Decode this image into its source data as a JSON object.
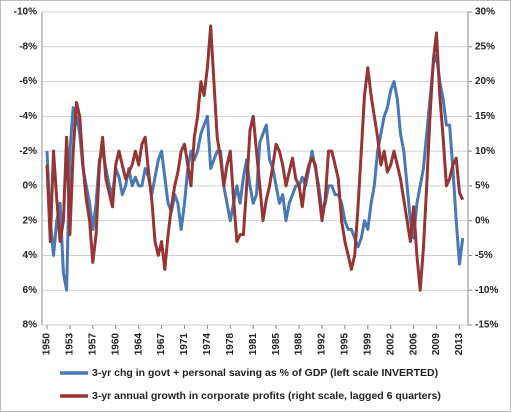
{
  "chart_data": {
    "type": "line",
    "x": [
      1950,
      1950.5,
      1951,
      1951.5,
      1952,
      1952.5,
      1953,
      1953.5,
      1954,
      1954.5,
      1955,
      1955.5,
      1956,
      1956.5,
      1957,
      1957.5,
      1958,
      1958.5,
      1959,
      1959.5,
      1960,
      1960.5,
      1961,
      1961.5,
      1962,
      1962.5,
      1963,
      1963.5,
      1964,
      1964.5,
      1965,
      1965.5,
      1966,
      1966.5,
      1967,
      1967.5,
      1968,
      1968.5,
      1969,
      1969.5,
      1970,
      1970.5,
      1971,
      1971.5,
      1972,
      1972.5,
      1973,
      1973.5,
      1974,
      1974.5,
      1975,
      1975.5,
      1976,
      1976.5,
      1977,
      1977.5,
      1978,
      1978.5,
      1979,
      1979.5,
      1980,
      1980.5,
      1981,
      1981.5,
      1982,
      1982.5,
      1983,
      1983.5,
      1984,
      1984.5,
      1985,
      1985.5,
      1986,
      1986.5,
      1987,
      1987.5,
      1988,
      1988.5,
      1989,
      1989.5,
      1990,
      1990.5,
      1991,
      1991.5,
      1992,
      1992.5,
      1993,
      1993.5,
      1994,
      1994.5,
      1995,
      1995.5,
      1996,
      1996.5,
      1997,
      1997.5,
      1998,
      1998.5,
      1999,
      1999.5,
      2000,
      2000.5,
      2001,
      2001.5,
      2002,
      2002.5,
      2003,
      2003.5,
      2004,
      2004.5,
      2005,
      2005.5,
      2006,
      2006.5,
      2007,
      2007.5,
      2008,
      2008.5,
      2009,
      2009.5,
      2010,
      2010.5,
      2011,
      2011.5,
      2012,
      2012.5,
      2013,
      2013.5
    ],
    "xlim": [
      1950,
      2014
    ],
    "xticks": [
      1950,
      {
        "value": 1953.5,
        "label": "1953"
      },
      1957,
      {
        "value": 1960.5,
        "label": "1960"
      },
      1964,
      {
        "value": 1967.5,
        "label": "1967"
      },
      1971,
      {
        "value": 1974.5,
        "label": "1974"
      },
      1978,
      {
        "value": 1981.5,
        "label": "1981"
      },
      1985,
      {
        "value": 1988.5,
        "label": "1988"
      },
      1992,
      {
        "value": 1995.5,
        "label": "1995"
      },
      1999,
      {
        "value": 2002.5,
        "label": "2002"
      },
      2006,
      {
        "value": 2009.5,
        "label": "2009"
      },
      2013
    ],
    "ylim": [
      -10,
      8
    ],
    "y_inverted": true,
    "yticks": [
      {
        "value": -10,
        "label": "-10%"
      },
      {
        "value": -8,
        "label": "-8%"
      },
      {
        "value": -6,
        "label": "-6%"
      },
      {
        "value": -4,
        "label": "-4%"
      },
      {
        "value": -2,
        "label": "-2%"
      },
      {
        "value": 0,
        "label": "0%"
      },
      {
        "value": 2,
        "label": "2%"
      },
      {
        "value": 4,
        "label": "4%"
      },
      {
        "value": 6,
        "label": "6%"
      },
      {
        "value": 8,
        "label": "8%"
      }
    ],
    "y2lim": [
      -15,
      30
    ],
    "y2ticks": [
      {
        "value": 30,
        "label": "30%"
      },
      {
        "value": 25,
        "label": "25%"
      },
      {
        "value": 20,
        "label": "20%"
      },
      {
        "value": 15,
        "label": "15%"
      },
      {
        "value": 10,
        "label": "10%"
      },
      {
        "value": 5,
        "label": "5%"
      },
      {
        "value": 0,
        "label": "0%"
      },
      {
        "value": -5,
        "label": "-5%"
      },
      {
        "value": -10,
        "label": "-10%"
      },
      {
        "value": -15,
        "label": "-15%"
      }
    ],
    "grid": true,
    "series": [
      {
        "name": "3-yr chg in govt + personal saving as % of GDP (left scale INVERTED)",
        "color": "#4a78b4",
        "values": [
          -2,
          2,
          4,
          2,
          1,
          5,
          6,
          -2,
          -4.5,
          -4,
          -3,
          -1,
          0,
          1,
          2.5,
          1,
          -1.5,
          -2,
          -1,
          0,
          0.5,
          -1,
          -0.5,
          0.5,
          0,
          -1,
          0,
          -0.5,
          0,
          0,
          -1,
          -0.5,
          0.5,
          -0.5,
          -1.5,
          -2,
          -0.5,
          1,
          1.5,
          0.5,
          1,
          2.5,
          1,
          -1,
          -2,
          -1.5,
          -2,
          -3,
          -3.5,
          -4,
          -1,
          -1.5,
          -2,
          -2,
          0,
          1,
          2,
          1,
          0,
          1,
          -0.5,
          -1.5,
          0,
          1,
          0.5,
          -2.5,
          -3,
          -3.5,
          -1.5,
          -1,
          0,
          1,
          0.5,
          2,
          1,
          0.5,
          0,
          0,
          -0.5,
          0,
          -1,
          -2,
          -1,
          0,
          1.5,
          1,
          0,
          0,
          0.5,
          0.5,
          1,
          2,
          2.5,
          2.5,
          3,
          3.5,
          3,
          2,
          2.5,
          1,
          0,
          -2,
          -3,
          -4,
          -4.5,
          -5.5,
          -6,
          -5,
          -3,
          -2,
          0,
          2,
          3,
          1,
          0,
          -1,
          -3,
          -5,
          -7,
          -7.5,
          -6,
          -5,
          -3.5,
          -3.5,
          -1,
          2,
          4.5,
          3
        ]
      },
      {
        "name": "3-yr annual growth in corporate profits (right scale, lagged 6 quarters)",
        "color": "#953534",
        "axis": "y2",
        "values": [
          8,
          -3,
          10,
          3,
          -3,
          0,
          12,
          -2,
          10,
          17,
          15,
          8,
          3,
          0,
          -6,
          -2,
          8,
          12,
          6,
          4,
          2,
          8,
          10,
          8,
          6,
          7,
          8,
          10,
          8,
          11,
          12,
          7,
          3,
          -3,
          -5,
          -3,
          -7,
          -2,
          2,
          5,
          7,
          10,
          11,
          8,
          5,
          12,
          15,
          20,
          18,
          22,
          28,
          20,
          12,
          9,
          5,
          8,
          10,
          3,
          -3,
          -2,
          -2,
          5,
          13,
          15,
          10,
          5,
          0,
          3,
          5,
          8,
          11,
          10,
          8,
          5,
          7,
          9,
          6,
          5,
          2,
          6,
          8,
          9,
          8,
          4,
          0,
          3,
          10,
          10,
          8,
          6,
          0,
          -3,
          -5,
          -7,
          -5,
          2,
          10,
          18,
          22,
          18,
          15,
          12,
          8,
          10,
          7,
          8,
          10,
          8,
          6,
          3,
          0,
          -3,
          2,
          -5,
          -10,
          -4,
          5,
          15,
          23,
          27,
          18,
          12,
          5,
          6,
          8,
          9,
          4,
          3
        ]
      }
    ]
  }
}
